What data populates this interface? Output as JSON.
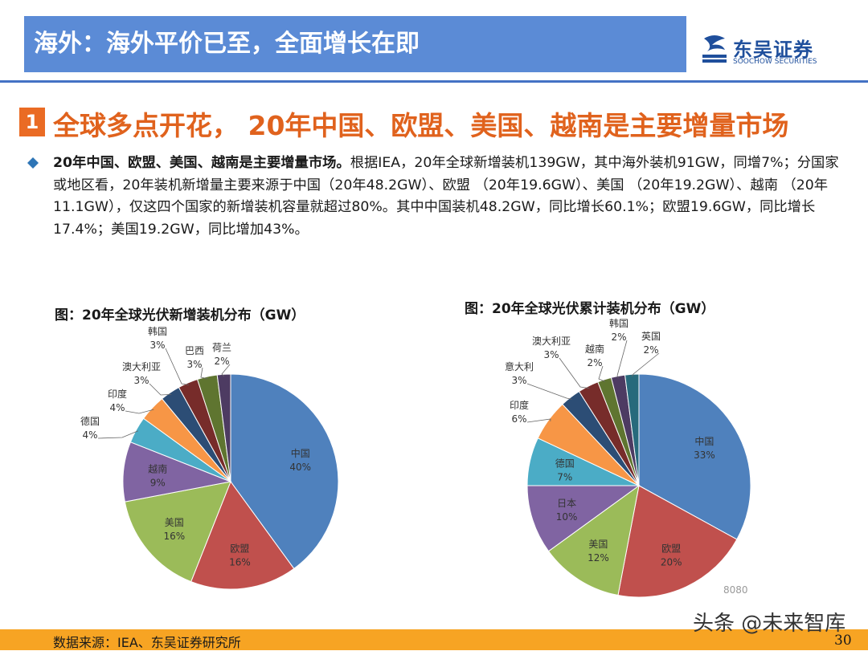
{
  "header": {
    "title": "海外：海外平价已至，全面增长在即"
  },
  "logo": {
    "name": "东吴证券",
    "sub": "SOOCHOW SECURITIES"
  },
  "section": {
    "number": "1",
    "title": "全球多点开花， 20年中国、欧盟、美国、越南是主要增量市场"
  },
  "body": {
    "lead": "20年中国、欧盟、美国、越南是主要增量市场。",
    "text": "根据IEA，20年全球新增装机139GW，其中海外装机91GW，同增7%；分国家或地区看，20年装机新增量主要来源于中国（20年48.2GW）、欧盟 （20年19.6GW）、美国 （20年19.2GW）、越南 （20年11.1GW），仅这四个国家的新增装机容量就超过80%。其中中国装机48.2GW，同比增长60.1%；欧盟19.6GW，同比增长17.4%；美国19.2GW，同比增加43%。"
  },
  "chart_data": [
    {
      "type": "pie",
      "title": "图：20年全球光伏新增装机分布（GW）",
      "categories": [
        "中国",
        "欧盟",
        "美国",
        "越南",
        "德国",
        "印度",
        "澳大利亚",
        "韩国",
        "巴西",
        "荷兰"
      ],
      "values": [
        40,
        16,
        16,
        9,
        4,
        4,
        3,
        3,
        3,
        2
      ],
      "labels": [
        "40%",
        "16%",
        "16%",
        "9%",
        "4%",
        "4%",
        "3%",
        "3%",
        "3%",
        "2%"
      ],
      "colors": [
        "#4f81bd",
        "#c0504d",
        "#9bbb59",
        "#8064a2",
        "#4bacc6",
        "#f79646",
        "#2c4d75",
        "#772c2a",
        "#5f7530",
        "#4d3b62"
      ]
    },
    {
      "type": "pie",
      "title": "图：20年全球光伏累计装机分布（GW）",
      "categories": [
        "中国",
        "欧盟",
        "美国",
        "日本",
        "德国",
        "印度",
        "意大利",
        "澳大利亚",
        "越南",
        "韩国",
        "英国"
      ],
      "values": [
        33,
        20,
        12,
        10,
        7,
        6,
        3,
        3,
        2,
        2,
        2
      ],
      "labels": [
        "33%",
        "20%",
        "12%",
        "10%",
        "7%",
        "6%",
        "3%",
        "3%",
        "2%",
        "2%",
        "2%"
      ],
      "colors": [
        "#4f81bd",
        "#c0504d",
        "#9bbb59",
        "#8064a2",
        "#4bacc6",
        "#f79646",
        "#2c4d75",
        "#772c2a",
        "#5f7530",
        "#4d3b62",
        "#276a7c"
      ]
    }
  ],
  "footer": {
    "source": "数据来源：IEA、东吴证券研究所",
    "page": "30"
  },
  "watermark": {
    "main": "头条 @未来智库",
    "small": "8080"
  }
}
